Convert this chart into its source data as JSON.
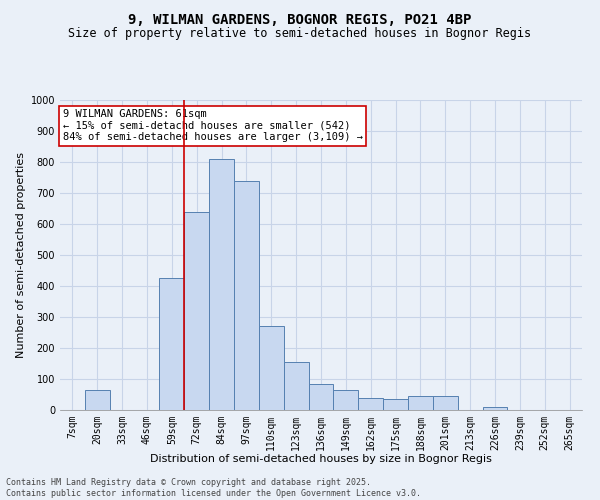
{
  "title1": "9, WILMAN GARDENS, BOGNOR REGIS, PO21 4BP",
  "title2": "Size of property relative to semi-detached houses in Bognor Regis",
  "xlabel": "Distribution of semi-detached houses by size in Bognor Regis",
  "ylabel": "Number of semi-detached properties",
  "categories": [
    "7sqm",
    "20sqm",
    "33sqm",
    "46sqm",
    "59sqm",
    "72sqm",
    "84sqm",
    "97sqm",
    "110sqm",
    "123sqm",
    "136sqm",
    "149sqm",
    "162sqm",
    "175sqm",
    "188sqm",
    "201sqm",
    "213sqm",
    "226sqm",
    "239sqm",
    "252sqm",
    "265sqm"
  ],
  "bar_heights": [
    0,
    65,
    0,
    0,
    425,
    640,
    810,
    740,
    270,
    155,
    85,
    65,
    40,
    35,
    45,
    45,
    0,
    10,
    0,
    0,
    0
  ],
  "bar_color": "#c8d8f0",
  "bar_edge_color": "#5580b0",
  "vline_x": 4.5,
  "vline_color": "#cc0000",
  "annotation_text": "9 WILMAN GARDENS: 61sqm\n← 15% of semi-detachd houses are smaller (542)\n84% of semi-detached houses are larger (3,109) →",
  "annotation_box_color": "#ffffff",
  "annotation_box_edge": "#cc0000",
  "ylim": [
    0,
    1000
  ],
  "yticks": [
    0,
    100,
    200,
    300,
    400,
    500,
    600,
    700,
    800,
    900,
    1000
  ],
  "footnote": "Contains HM Land Registry data © Crown copyright and database right 2025.\nContains public sector information licensed under the Open Government Licence v3.0.",
  "bg_color": "#eaf0f8",
  "grid_color": "#c8d4e8",
  "title_fontsize": 10,
  "subtitle_fontsize": 8.5,
  "axis_label_fontsize": 8,
  "tick_fontsize": 7,
  "annot_fontsize": 7.5,
  "footnote_fontsize": 6
}
